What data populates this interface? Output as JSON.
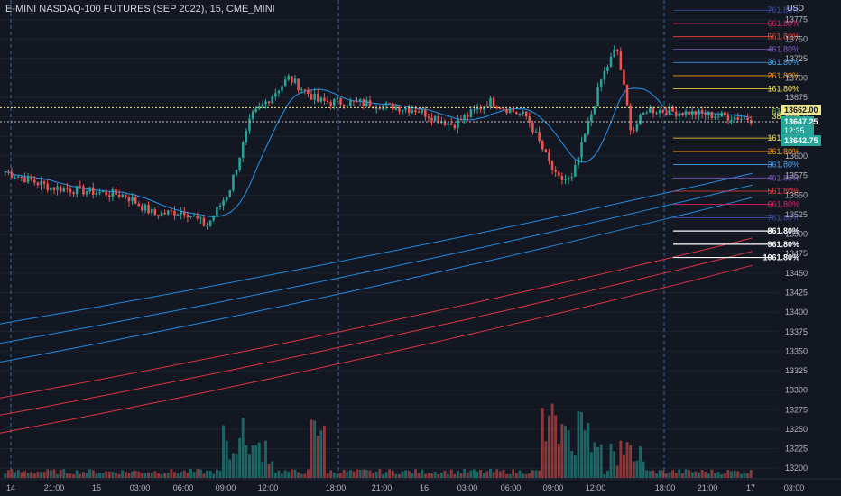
{
  "header": {
    "title": "E-MINI NASDAQ-100 FUTURES (SEP 2022), 15, CME_MINI",
    "currency": "USD"
  },
  "badges": {
    "fib_price": "13662.00",
    "last_price": "13647.25",
    "countdown": "12:35",
    "second_price": "13642.75"
  },
  "colors": {
    "background": "#131722",
    "up": "#26a69a",
    "down": "#ef5350",
    "axis_text": "#b2b5be",
    "ma_blue": "#2196f3",
    "ma_red": "#f23645"
  },
  "chart_data": {
    "type": "candlestick",
    "title": "E-MINI NASDAQ-100 FUTURES (SEP 2022), 15, CME_MINI",
    "ylim": [
      13187.5,
      13800
    ],
    "y_ticks": [
      13775,
      13750,
      13725,
      13700,
      13675,
      13650,
      13625,
      13600,
      13575,
      13550,
      13525,
      13500,
      13475,
      13450,
      13425,
      13400,
      13375,
      13350,
      13325,
      13300,
      13275,
      13250,
      13225,
      13200
    ],
    "x_ticks": [
      "14",
      "21:00",
      "15",
      "03:00",
      "06:00",
      "09:00",
      "12:00",
      "18:00",
      "21:00",
      "16",
      "03:00",
      "06:00",
      "09:00",
      "12:00",
      "18:00",
      "21:00",
      "17",
      "03:00"
    ],
    "session_dividers": [
      "14",
      "18:00 (14)",
      "18:00 (15)",
      "18:00 (16)"
    ],
    "keypoints": [
      {
        "t": 0,
        "p": 13580
      },
      {
        "t": 0.06,
        "p": 13560
      },
      {
        "t": 0.16,
        "p": 13550
      },
      {
        "t": 0.2,
        "p": 13525
      },
      {
        "t": 0.24,
        "p": 13530
      },
      {
        "t": 0.27,
        "p": 13510
      },
      {
        "t": 0.3,
        "p": 13555
      },
      {
        "t": 0.33,
        "p": 13650
      },
      {
        "t": 0.38,
        "p": 13700
      },
      {
        "t": 0.42,
        "p": 13670
      },
      {
        "t": 0.48,
        "p": 13668
      },
      {
        "t": 0.55,
        "p": 13660
      },
      {
        "t": 0.6,
        "p": 13640
      },
      {
        "t": 0.65,
        "p": 13670
      },
      {
        "t": 0.7,
        "p": 13650
      },
      {
        "t": 0.74,
        "p": 13570
      },
      {
        "t": 0.76,
        "p": 13570
      },
      {
        "t": 0.8,
        "p": 13700
      },
      {
        "t": 0.82,
        "p": 13740
      },
      {
        "t": 0.84,
        "p": 13630
      },
      {
        "t": 0.86,
        "p": 13660
      },
      {
        "t": 1.0,
        "p": 13648
      }
    ],
    "fib_upper": [
      {
        "label": "761.80%",
        "price": 13787,
        "color": "#3f51b5"
      },
      {
        "label": "661.80%",
        "price": 13770,
        "color": "#e91e63"
      },
      {
        "label": "561.80%",
        "price": 13753,
        "color": "#f44336"
      },
      {
        "label": "461.80%",
        "price": 13737,
        "color": "#7e57c2"
      },
      {
        "label": "361.80%",
        "price": 13720,
        "color": "#42a5f5"
      },
      {
        "label": "261.80%",
        "price": 13703,
        "color": "#ff9800"
      },
      {
        "label": "161.80%",
        "price": 13686,
        "color": "#ffeb3b"
      }
    ],
    "fib_lower": [
      {
        "label": "161.80%",
        "price": 13623,
        "color": "#ffeb3b"
      },
      {
        "label": "261.80%",
        "price": 13606,
        "color": "#ff9800"
      },
      {
        "label": "361.80%",
        "price": 13589,
        "color": "#42a5f5"
      },
      {
        "label": "461.80%",
        "price": 13572,
        "color": "#7e57c2"
      },
      {
        "label": "561.80%",
        "price": 13555,
        "color": "#f44336"
      },
      {
        "label": "661.80%",
        "price": 13538,
        "color": "#e91e63"
      },
      {
        "label": "761.80%",
        "price": 13521,
        "color": "#3f51b5"
      },
      {
        "label": "861.80%",
        "price": 13504,
        "color": "#ffffff"
      },
      {
        "label": "961.80%",
        "price": 13487,
        "color": "#ffffff"
      },
      {
        "label": "1061.80%",
        "price": 13470,
        "color": "#ffffff"
      }
    ],
    "fib_mid_labels": [
      {
        "label": "61.80%",
        "price": 13657,
        "color": "#8bc34a"
      },
      {
        "label": "0.00%",
        "price": 13654,
        "color": "#4caf50"
      },
      {
        "label": "38.20%",
        "price": 13651,
        "color": "#ffeb3b"
      }
    ],
    "dotted_levels": [
      13662,
      13644
    ],
    "bands": [
      {
        "color": "#2196f3",
        "start": 13385,
        "end": 13578
      },
      {
        "color": "#2196f3",
        "start": 13360,
        "end": 13563
      },
      {
        "color": "#2196f3",
        "start": 13336,
        "end": 13547
      },
      {
        "color": "#f23645",
        "start": 13290,
        "end": 13495
      },
      {
        "color": "#f23645",
        "start": 13268,
        "end": 13478
      },
      {
        "color": "#f23645",
        "start": 13245,
        "end": 13460
      }
    ]
  }
}
